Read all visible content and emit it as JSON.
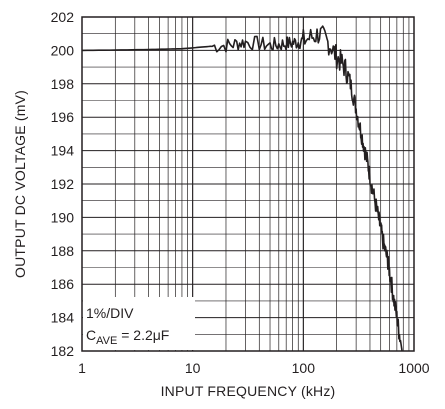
{
  "chart_data": {
    "type": "line",
    "xlabel": "INPUT FREQUENCY (kHz)",
    "ylabel": "OUTPUT DC VOLTAGE (mV)",
    "xscale": "log",
    "xlim": [
      1,
      1000
    ],
    "ylim": [
      182,
      202
    ],
    "x_ticks": [
      "1",
      "10",
      "100",
      "1000"
    ],
    "y_ticks": [
      "182",
      "184",
      "186",
      "188",
      "190",
      "192",
      "194",
      "196",
      "198",
      "200",
      "202"
    ],
    "grid": true,
    "annotations": [
      "1%/DIV"
    ],
    "annotation_cave": {
      "prefix": "C",
      "subscript": "AVE",
      "suffix": " = 2.2μF"
    },
    "series": [
      {
        "color": "#231f20",
        "x": [
          1,
          2,
          4,
          6,
          8,
          10,
          12,
          15,
          20,
          25,
          30,
          40,
          50,
          60,
          70,
          80,
          90,
          100,
          120,
          140,
          160,
          180,
          200,
          220,
          240,
          260,
          280,
          300,
          320,
          340,
          360,
          380,
          400,
          420,
          450,
          480,
          500,
          520,
          550,
          580,
          600,
          630,
          660,
          700,
          730,
          760,
          780
        ],
        "y": [
          200.0,
          200.02,
          200.05,
          200.08,
          200.1,
          200.15,
          200.2,
          200.25,
          200.3,
          200.4,
          200.5,
          200.4,
          200.3,
          200.35,
          200.4,
          200.45,
          200.5,
          200.6,
          200.8,
          201.0,
          200.6,
          200.2,
          199.6,
          199.3,
          198.9,
          198.3,
          197.4,
          196.5,
          195.6,
          194.8,
          194.0,
          193.3,
          192.5,
          191.7,
          190.8,
          189.9,
          189.3,
          188.7,
          188.0,
          187.4,
          186.8,
          185.9,
          185.0,
          184.0,
          183.2,
          182.5,
          182.0
        ]
      }
    ]
  }
}
